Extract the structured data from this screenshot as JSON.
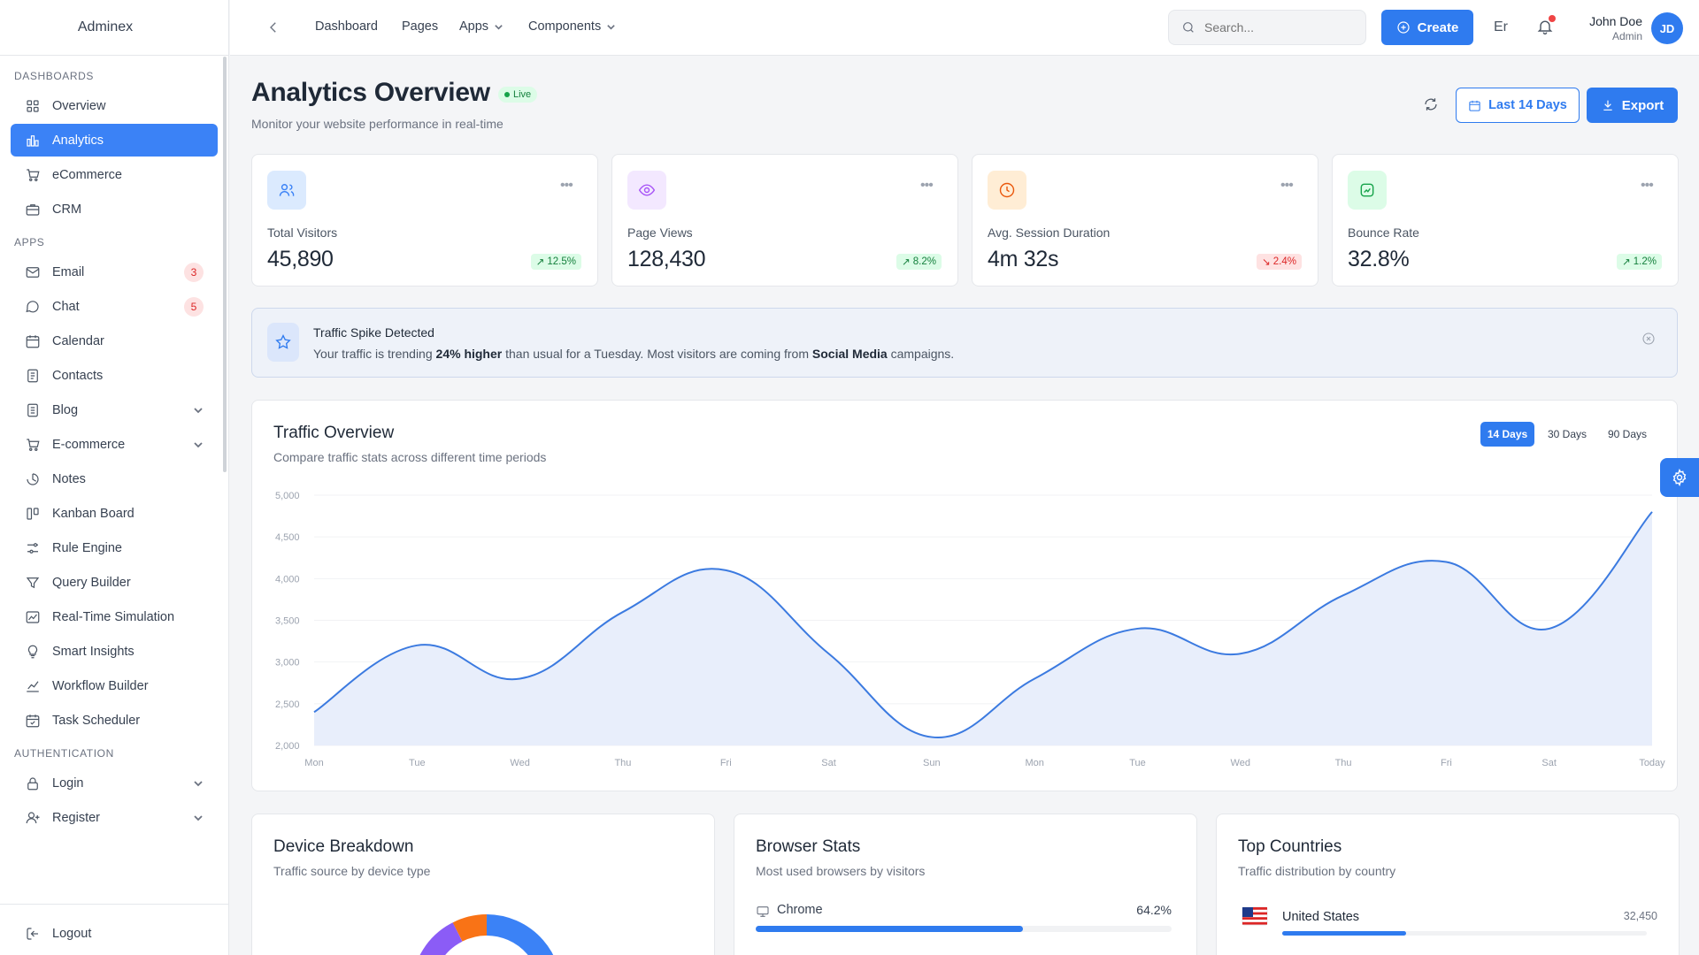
{
  "app": {
    "brand": "Adminex"
  },
  "sidebar": {
    "sections": [
      {
        "title": "DASHBOARDS",
        "items": [
          {
            "label": "Overview",
            "icon": "grid-icon"
          },
          {
            "label": "Analytics",
            "icon": "bar-chart-icon",
            "active": true
          },
          {
            "label": "eCommerce",
            "icon": "cart-icon"
          },
          {
            "label": "CRM",
            "icon": "briefcase-icon"
          }
        ]
      },
      {
        "title": "APPS",
        "items": [
          {
            "label": "Email",
            "icon": "mail-icon",
            "badge": "3"
          },
          {
            "label": "Chat",
            "icon": "chat-icon",
            "badge": "5"
          },
          {
            "label": "Calendar",
            "icon": "calendar-icon"
          },
          {
            "label": "Contacts",
            "icon": "contacts-icon"
          },
          {
            "label": "Blog",
            "icon": "document-icon",
            "expandable": true
          },
          {
            "label": "E-commerce",
            "icon": "cart-icon",
            "expandable": true
          },
          {
            "label": "Notes",
            "icon": "notes-icon"
          },
          {
            "label": "Kanban Board",
            "icon": "kanban-icon"
          },
          {
            "label": "Rule Engine",
            "icon": "sliders-icon"
          },
          {
            "label": "Query Builder",
            "icon": "filter-icon"
          },
          {
            "label": "Real-Time Simulation",
            "icon": "image-chart-icon"
          },
          {
            "label": "Smart Insights",
            "icon": "lightbulb-icon"
          },
          {
            "label": "Workflow Builder",
            "icon": "trend-icon"
          },
          {
            "label": "Task Scheduler",
            "icon": "calendar-check-icon"
          }
        ]
      },
      {
        "title": "AUTHENTICATION",
        "items": [
          {
            "label": "Login",
            "icon": "lock-icon",
            "expandable": true
          },
          {
            "label": "Register",
            "icon": "user-add-icon",
            "expandable": true
          }
        ]
      }
    ],
    "logout": "Logout"
  },
  "topbar": {
    "links": [
      "Dashboard",
      "Pages",
      "Apps",
      "Components"
    ],
    "search_placeholder": "Search...",
    "create_label": "Create",
    "language": "Er",
    "user_name": "John Doe",
    "user_role": "Admin",
    "user_initials": "JD"
  },
  "page": {
    "title": "Analytics Overview",
    "live_badge": "Live",
    "subtitle": "Monitor your website performance in real-time",
    "range_label": "Last 14 Days",
    "export_label": "Export"
  },
  "stats": [
    {
      "label": "Total Visitors",
      "value": "45,890",
      "change": "12.5%",
      "trend": "up",
      "icon": "users-icon",
      "color": "#3b82f6",
      "bg": "#dbeafe"
    },
    {
      "label": "Page Views",
      "value": "128,430",
      "change": "8.2%",
      "trend": "up",
      "icon": "eye-icon",
      "color": "#a855f7",
      "bg": "#f3e8ff"
    },
    {
      "label": "Avg. Session Duration",
      "value": "4m 32s",
      "change": "2.4%",
      "trend": "down",
      "icon": "clock-icon",
      "color": "#ea580c",
      "bg": "#ffedd5"
    },
    {
      "label": "Bounce Rate",
      "value": "32.8%",
      "change": "1.2%",
      "trend": "up",
      "icon": "bounce-icon",
      "color": "#16a34a",
      "bg": "#dcfce7"
    }
  ],
  "alert": {
    "title": "Traffic Spike Detected",
    "msg_pre": "Your traffic is trending ",
    "msg_bold1": "24% higher",
    "msg_mid": " than usual for a Tuesday. Most visitors are coming from ",
    "msg_bold2": "Social Media",
    "msg_post": " campaigns."
  },
  "traffic": {
    "title": "Traffic Overview",
    "subtitle": "Compare traffic stats across different time periods",
    "tabs": [
      "14 Days",
      "30 Days",
      "90 Days"
    ],
    "active_tab": "14 Days"
  },
  "chart_data": {
    "type": "area",
    "title": "Traffic Overview",
    "categories": [
      "Mon",
      "Tue",
      "Wed",
      "Thu",
      "Fri",
      "Sat",
      "Sun",
      "Mon",
      "Tue",
      "Wed",
      "Thu",
      "Fri",
      "Sat",
      "Today"
    ],
    "series": [
      {
        "values": [
          2400,
          3200,
          2800,
          3600,
          4100,
          3100,
          2100,
          2800,
          3400,
          3100,
          3800,
          4200,
          3400,
          4800
        ]
      }
    ],
    "ylim": [
      2000,
      5000
    ],
    "yticks": [
      "2,000",
      "2,500",
      "3,000",
      "3,500",
      "4,000",
      "4,500",
      "5,000"
    ],
    "grid": true,
    "color": "#3b7ae0"
  },
  "device": {
    "title": "Device Breakdown",
    "subtitle": "Traffic source by device type"
  },
  "browser": {
    "title": "Browser Stats",
    "subtitle": "Most used browsers by visitors",
    "rows": [
      {
        "name": "Chrome",
        "pct": "64.2%",
        "value": 64.2
      }
    ]
  },
  "countries": {
    "title": "Top Countries",
    "subtitle": "Traffic distribution by country",
    "rows": [
      {
        "name": "United States",
        "count": "32,450",
        "share": 0.34
      }
    ]
  }
}
